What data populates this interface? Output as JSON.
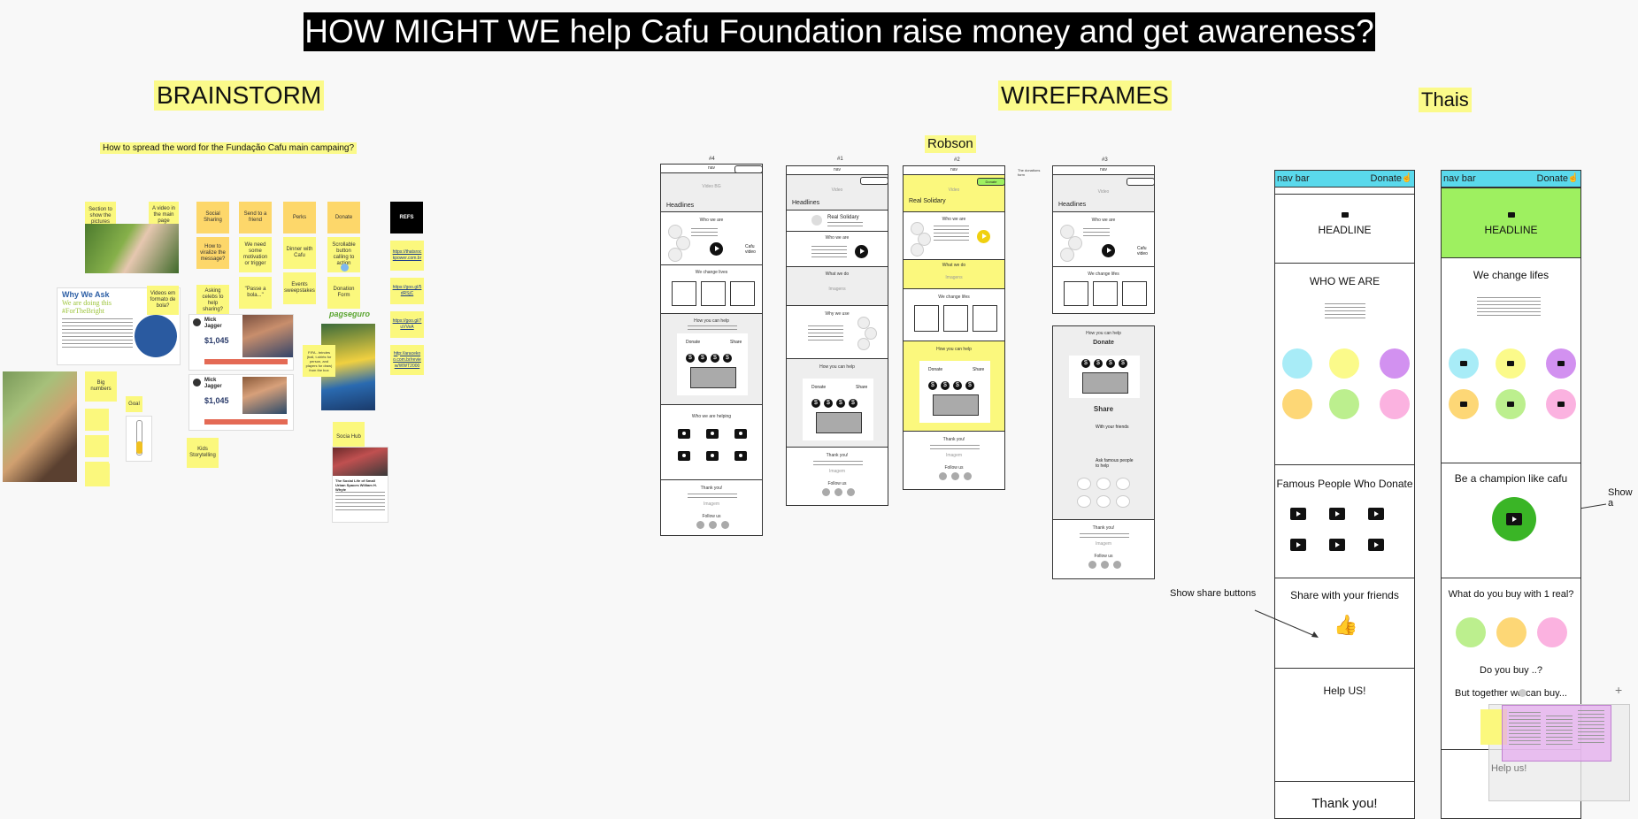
{
  "title": "HOW MIGHT WE help Cafu Foundation raise money and get awareness?",
  "sections": {
    "brainstorm": "BRAINSTORM",
    "wireframes": "WIREFRAMES",
    "thais": "Thais",
    "robson": "Robson"
  },
  "brainstorm": {
    "question": "How to spread the word for the Fundação Cafu main campaing?",
    "stickies": {
      "show_pictures": "Section to show the pictures",
      "video_main": "A video in the main page",
      "social_sharing": "Social Sharing",
      "send_friend": "Send to a friend",
      "perks": "Perks",
      "donate": "Donate",
      "refs": "REFS",
      "viralize": "How to viralize the message?",
      "motivation": "We need some motivation or trigger",
      "dinner": "Dinner with Cafu",
      "scrollable": "Scrollable button calling to action",
      "videos_format": "Videos em formato de bola?",
      "asking_celebs": "Asking celebs to help sharing?",
      "passe": "\"Passe a bola...\"",
      "events": "Events sweepstakes",
      "donation_form": "Donation Form",
      "big_numbers": "Big numbers",
      "goal": "Goal",
      "kids": "Kids Storytelling",
      "social_hub": "Socia Hub",
      "fifa": "FIFA - brindes (ball, t-shirts for person, and players for draw) from the box"
    },
    "refs_links": [
      "https://thatsrockpower.com.br",
      "https://goo.gl/5dRSjC",
      "https://goo.gl/7uVVeA",
      "http://aracekoo.com.br/review/WWT2000"
    ],
    "why_we_ask": {
      "heading": "Why We Ask",
      "subheading": "We are doing this #ForTheBright"
    },
    "jagger": {
      "name": "Mick Jagger",
      "amount": "$1,045"
    },
    "pagseguro": "pagseguro",
    "article_title": "The Social Life of Small Urban Spaces William H. Whyte"
  },
  "wireframes": {
    "wf4": {
      "label": "#4",
      "nav": "nav",
      "video": "Video BG",
      "headline": "Headlines",
      "who": "Who we are",
      "cafu_video": "Cafu video",
      "change": "We change lives",
      "help": "How you can help",
      "donate": "Donate",
      "share": "Share",
      "helping": "Who we are helping",
      "thanks": "Thank you!",
      "imagem": "Imagem",
      "follow": "Follow us"
    },
    "wf1": {
      "label": "#1",
      "nav": "nav",
      "video": "Video",
      "headline": "Headlines",
      "real": "Real Solidary",
      "who": "Who we are",
      "whatdo": "What we do",
      "images": "Imagens",
      "whyuse": "Why we use",
      "help": "How you can help",
      "donate": "Donate",
      "share": "Share",
      "thanks": "Thank you!",
      "imagem": "Imagem",
      "follow": "Follow us"
    },
    "wf2": {
      "label": "#2",
      "nav": "nav",
      "video": "Video",
      "real": "Real Solidary",
      "donate_btn": "Donate",
      "note": "The donations form",
      "who": "Who we are",
      "whatdo": "What we do",
      "images": "Imagens",
      "change": "We change lifes",
      "help": "How you can help",
      "donate": "Donate",
      "share": "Share",
      "thanks": "Thank you!",
      "imagem": "Imagem",
      "follow": "Follow us"
    },
    "wf3": {
      "label": "#3",
      "nav": "nav",
      "video": "Video",
      "headline": "Headlines",
      "who": "Who we are",
      "cafu_video": "Cafu video",
      "change": "We change lifes",
      "help": "How you can help",
      "donate": "Donate",
      "share": "Share",
      "friends": "With your friends",
      "famous": "Ask famous people to help",
      "thanks": "Thank you!",
      "imagem": "Imagem",
      "follow": "Follow us"
    }
  },
  "thais": {
    "m1": {
      "nav": "nav bar",
      "donate": "Donate",
      "headline": "HEADLINE",
      "who": "WHO WE ARE",
      "famous": "Famous People Who Donate",
      "share": "Share with your friends",
      "help": "Help US!",
      "thanks": "Thank you!"
    },
    "m2": {
      "nav": "nav bar",
      "donate": "Donate",
      "headline": "HEADLINE",
      "change": "We change lifes",
      "champion": "Be a champion like cafu",
      "buy": "What do you buy with 1 real?",
      "doyou": "Do you buy ..?",
      "together": "But together we can buy...",
      "help": "Help us!"
    },
    "annotations": {
      "share_buttons": "Show share buttons",
      "show": "Show a"
    },
    "colors": {
      "cyan": "#a8ecf7",
      "yellow": "#fbfa8a",
      "purple": "#d291f0",
      "orange": "#fdd776",
      "green": "#bcef8e",
      "pink": "#fbb2e0",
      "green_header": "#9ef060",
      "champion": "#3ab526"
    },
    "zoom": {
      "minus": "−",
      "plus": "+"
    }
  }
}
